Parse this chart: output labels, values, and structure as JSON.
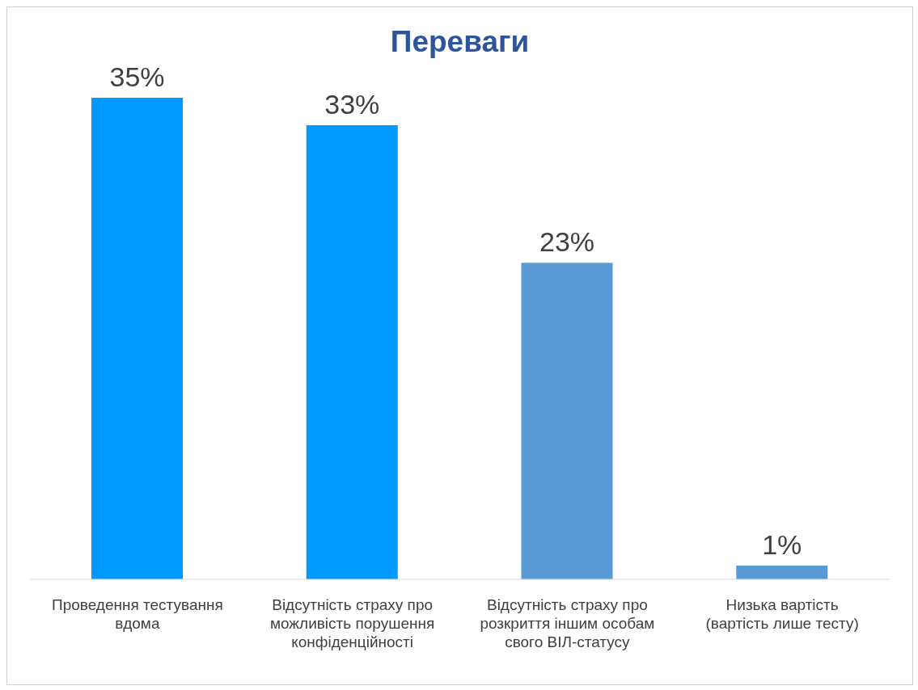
{
  "chart_data": {
    "type": "bar",
    "title": "Переваги",
    "categories": [
      "Проведення тестування вдома",
      "Відсутність страху про можливість порушення конфіденційності",
      "Відсутність страху про розкриття іншим особам свого ВІЛ-статусу",
      "Низька вартість (вартість лише тесту)"
    ],
    "values": [
      35,
      33,
      23,
      1
    ],
    "colors": [
      "#0099ff",
      "#0099ff",
      "#5b9bd5",
      "#5b9bd5"
    ],
    "value_labels": [
      "35%",
      "33%",
      "23%",
      "1%"
    ],
    "grid": false,
    "legend": false
  }
}
